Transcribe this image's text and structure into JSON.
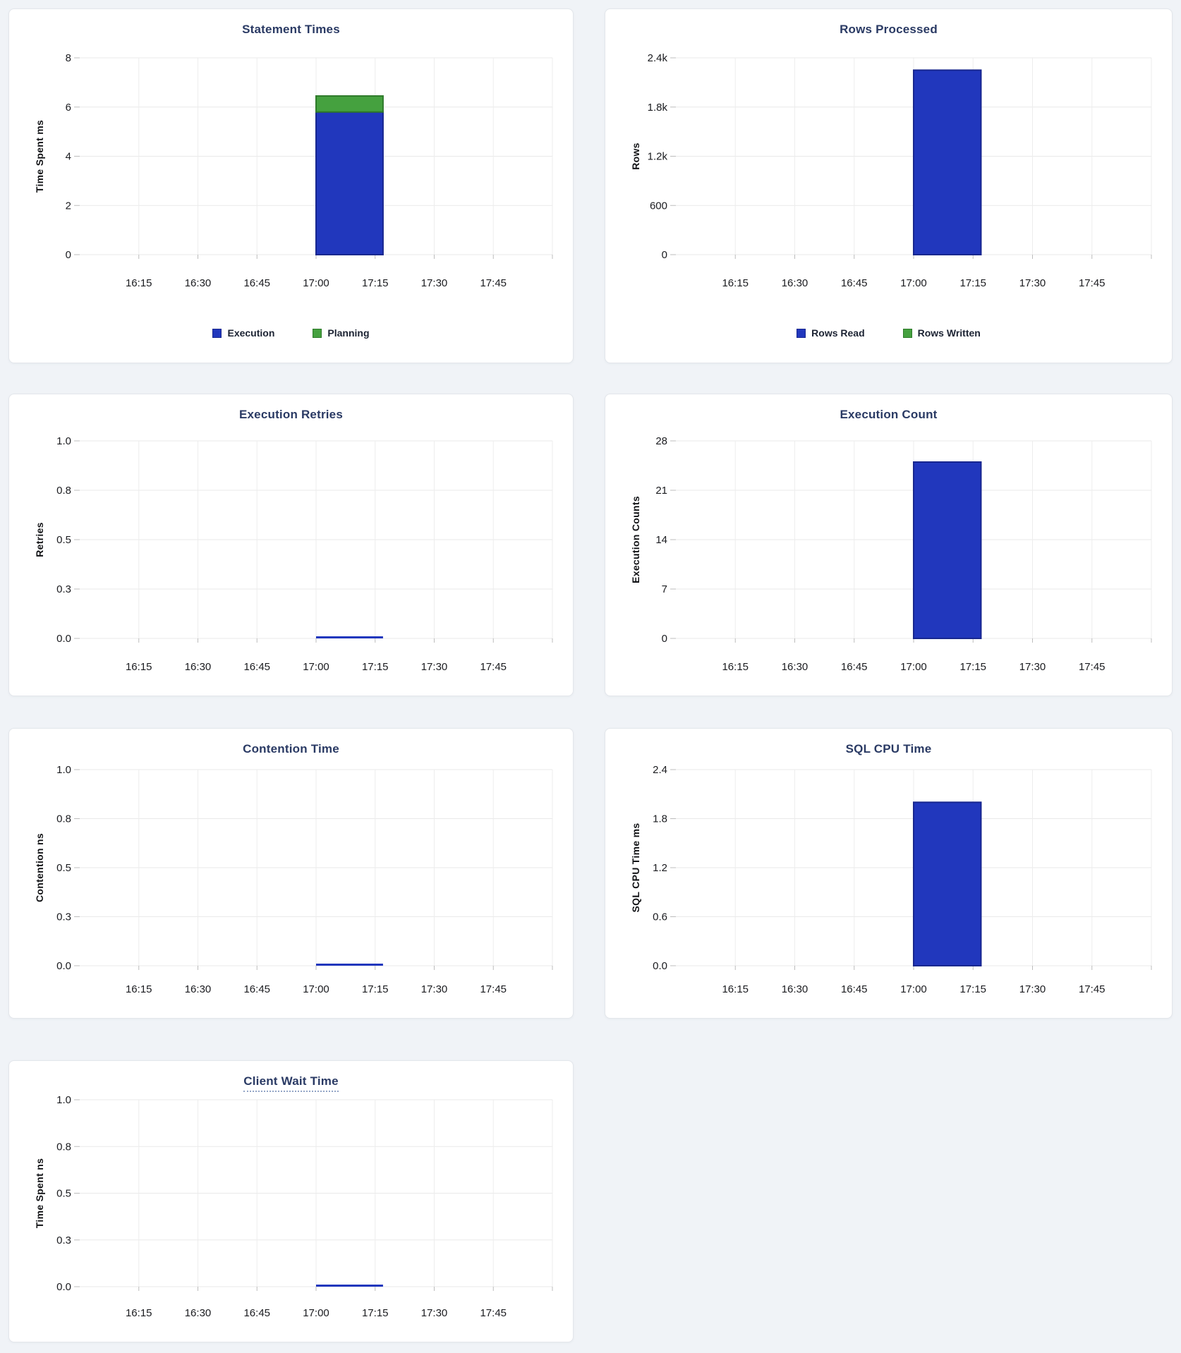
{
  "page": {
    "background": "#f0f3f7",
    "card_background": "#ffffff",
    "card_border": "#e3e6eb"
  },
  "palette": {
    "bar_blue": "#2137bd",
    "bar_blue_border": "#18278f",
    "bar_green": "#45a13f",
    "bar_green_border": "#2e7a2a",
    "title_color": "#2a3a64",
    "axis_text": "#1a1b1f",
    "grid_line": "#e9e9e9",
    "tick_stub": "#bcbcbc",
    "legend_text": "#1c2333",
    "tooltip_underline": "#93a5c6"
  },
  "chart_data": [
    {
      "type": "bar",
      "title": "Statement Times",
      "xlabel": "",
      "ylabel": "Time Spent ms",
      "ylim": [
        0,
        8
      ],
      "ytick_labels": [
        "0",
        "2",
        "4",
        "6",
        "8"
      ],
      "xtick_labels": [
        "16:15",
        "16:30",
        "16:45",
        "17:00",
        "17:15",
        "17:30",
        "17:45"
      ],
      "x_window": [
        "16:00",
        "18:00"
      ],
      "grid": true,
      "legend_position": "bottom",
      "bar": {
        "start": "17:00",
        "end": "17:17",
        "start_min": 60,
        "end_min": 77
      },
      "series": [
        {
          "name": "Execution",
          "value": 5.8,
          "color": "#2137bd",
          "border": "#18278f"
        },
        {
          "name": "Planning",
          "value": 0.65,
          "color": "#45a13f",
          "border": "#2e7a2a"
        }
      ],
      "legend": [
        {
          "label": "Execution",
          "color": "#2137bd",
          "border": "#18278f"
        },
        {
          "label": "Planning",
          "color": "#45a13f",
          "border": "#2e7a2a"
        }
      ],
      "title_tooltip_underline": false
    },
    {
      "type": "bar",
      "title": "Rows Processed",
      "xlabel": "",
      "ylabel": "Rows",
      "ylim": [
        0,
        2400
      ],
      "ytick_labels": [
        "0",
        "600",
        "1.2k",
        "1.8k",
        "2.4k"
      ],
      "xtick_labels": [
        "16:15",
        "16:30",
        "16:45",
        "17:00",
        "17:15",
        "17:30",
        "17:45"
      ],
      "x_window": [
        "16:00",
        "18:00"
      ],
      "grid": true,
      "legend_position": "bottom",
      "bar": {
        "start": "17:00",
        "end": "17:17",
        "start_min": 60,
        "end_min": 77
      },
      "series": [
        {
          "name": "Rows Read",
          "value": 2250,
          "color": "#2137bd",
          "border": "#18278f"
        },
        {
          "name": "Rows Written",
          "value": 0,
          "color": "#45a13f",
          "border": "#2e7a2a"
        }
      ],
      "legend": [
        {
          "label": "Rows Read",
          "color": "#2137bd",
          "border": "#18278f"
        },
        {
          "label": "Rows Written",
          "color": "#45a13f",
          "border": "#2e7a2a"
        }
      ],
      "title_tooltip_underline": false
    },
    {
      "type": "bar",
      "title": "Execution Retries",
      "xlabel": "",
      "ylabel": "Retries",
      "ylim": [
        0,
        1
      ],
      "ytick_labels": [
        "0.0",
        "0.3",
        "0.5",
        "0.8",
        "1.0"
      ],
      "xtick_labels": [
        "16:15",
        "16:30",
        "16:45",
        "17:00",
        "17:15",
        "17:30",
        "17:45"
      ],
      "x_window": [
        "16:00",
        "18:00"
      ],
      "grid": true,
      "bar": {
        "start": "17:00",
        "end": "17:17",
        "start_min": 60,
        "end_min": 77
      },
      "series": [
        {
          "name": "Retries",
          "value": 0,
          "color": "#2137bd",
          "border": "#18278f"
        }
      ],
      "legend": [],
      "title_tooltip_underline": false
    },
    {
      "type": "bar",
      "title": "Execution Count",
      "xlabel": "",
      "ylabel": "Execution Counts",
      "ylim": [
        0,
        28
      ],
      "ytick_labels": [
        "0",
        "7",
        "14",
        "21",
        "28"
      ],
      "xtick_labels": [
        "16:15",
        "16:30",
        "16:45",
        "17:00",
        "17:15",
        "17:30",
        "17:45"
      ],
      "x_window": [
        "16:00",
        "18:00"
      ],
      "grid": true,
      "bar": {
        "start": "17:00",
        "end": "17:17",
        "start_min": 60,
        "end_min": 77
      },
      "series": [
        {
          "name": "Execution Count",
          "value": 25,
          "color": "#2137bd",
          "border": "#18278f"
        }
      ],
      "legend": [],
      "title_tooltip_underline": false
    },
    {
      "type": "bar",
      "title": "Contention Time",
      "xlabel": "",
      "ylabel": "Contention ns",
      "ylim": [
        0,
        1
      ],
      "ytick_labels": [
        "0.0",
        "0.3",
        "0.5",
        "0.8",
        "1.0"
      ],
      "xtick_labels": [
        "16:15",
        "16:30",
        "16:45",
        "17:00",
        "17:15",
        "17:30",
        "17:45"
      ],
      "x_window": [
        "16:00",
        "18:00"
      ],
      "grid": true,
      "bar": {
        "start": "17:00",
        "end": "17:17",
        "start_min": 60,
        "end_min": 77
      },
      "series": [
        {
          "name": "Contention",
          "value": 0,
          "color": "#2137bd",
          "border": "#18278f"
        }
      ],
      "legend": [],
      "title_tooltip_underline": false
    },
    {
      "type": "bar",
      "title": "SQL CPU Time",
      "xlabel": "",
      "ylabel": "SQL CPU Time ms",
      "ylim": [
        0,
        2.4
      ],
      "ytick_labels": [
        "0.0",
        "0.6",
        "1.2",
        "1.8",
        "2.4"
      ],
      "xtick_labels": [
        "16:15",
        "16:30",
        "16:45",
        "17:00",
        "17:15",
        "17:30",
        "17:45"
      ],
      "x_window": [
        "16:00",
        "18:00"
      ],
      "grid": true,
      "bar": {
        "start": "17:00",
        "end": "17:17",
        "start_min": 60,
        "end_min": 77
      },
      "series": [
        {
          "name": "SQL CPU Time",
          "value": 2.0,
          "color": "#2137bd",
          "border": "#18278f"
        }
      ],
      "legend": [],
      "title_tooltip_underline": false
    },
    {
      "type": "bar",
      "title": "Client Wait Time",
      "xlabel": "",
      "ylabel": "Time Spent ns",
      "ylim": [
        0,
        1
      ],
      "ytick_labels": [
        "0.0",
        "0.3",
        "0.5",
        "0.8",
        "1.0"
      ],
      "xtick_labels": [
        "16:15",
        "16:30",
        "16:45",
        "17:00",
        "17:15",
        "17:30",
        "17:45"
      ],
      "x_window": [
        "16:00",
        "18:00"
      ],
      "grid": true,
      "bar": {
        "start": "17:00",
        "end": "17:17",
        "start_min": 60,
        "end_min": 77
      },
      "series": [
        {
          "name": "Client Wait",
          "value": 0,
          "color": "#2137bd",
          "border": "#18278f"
        }
      ],
      "legend": [],
      "title_tooltip_underline": true
    }
  ]
}
